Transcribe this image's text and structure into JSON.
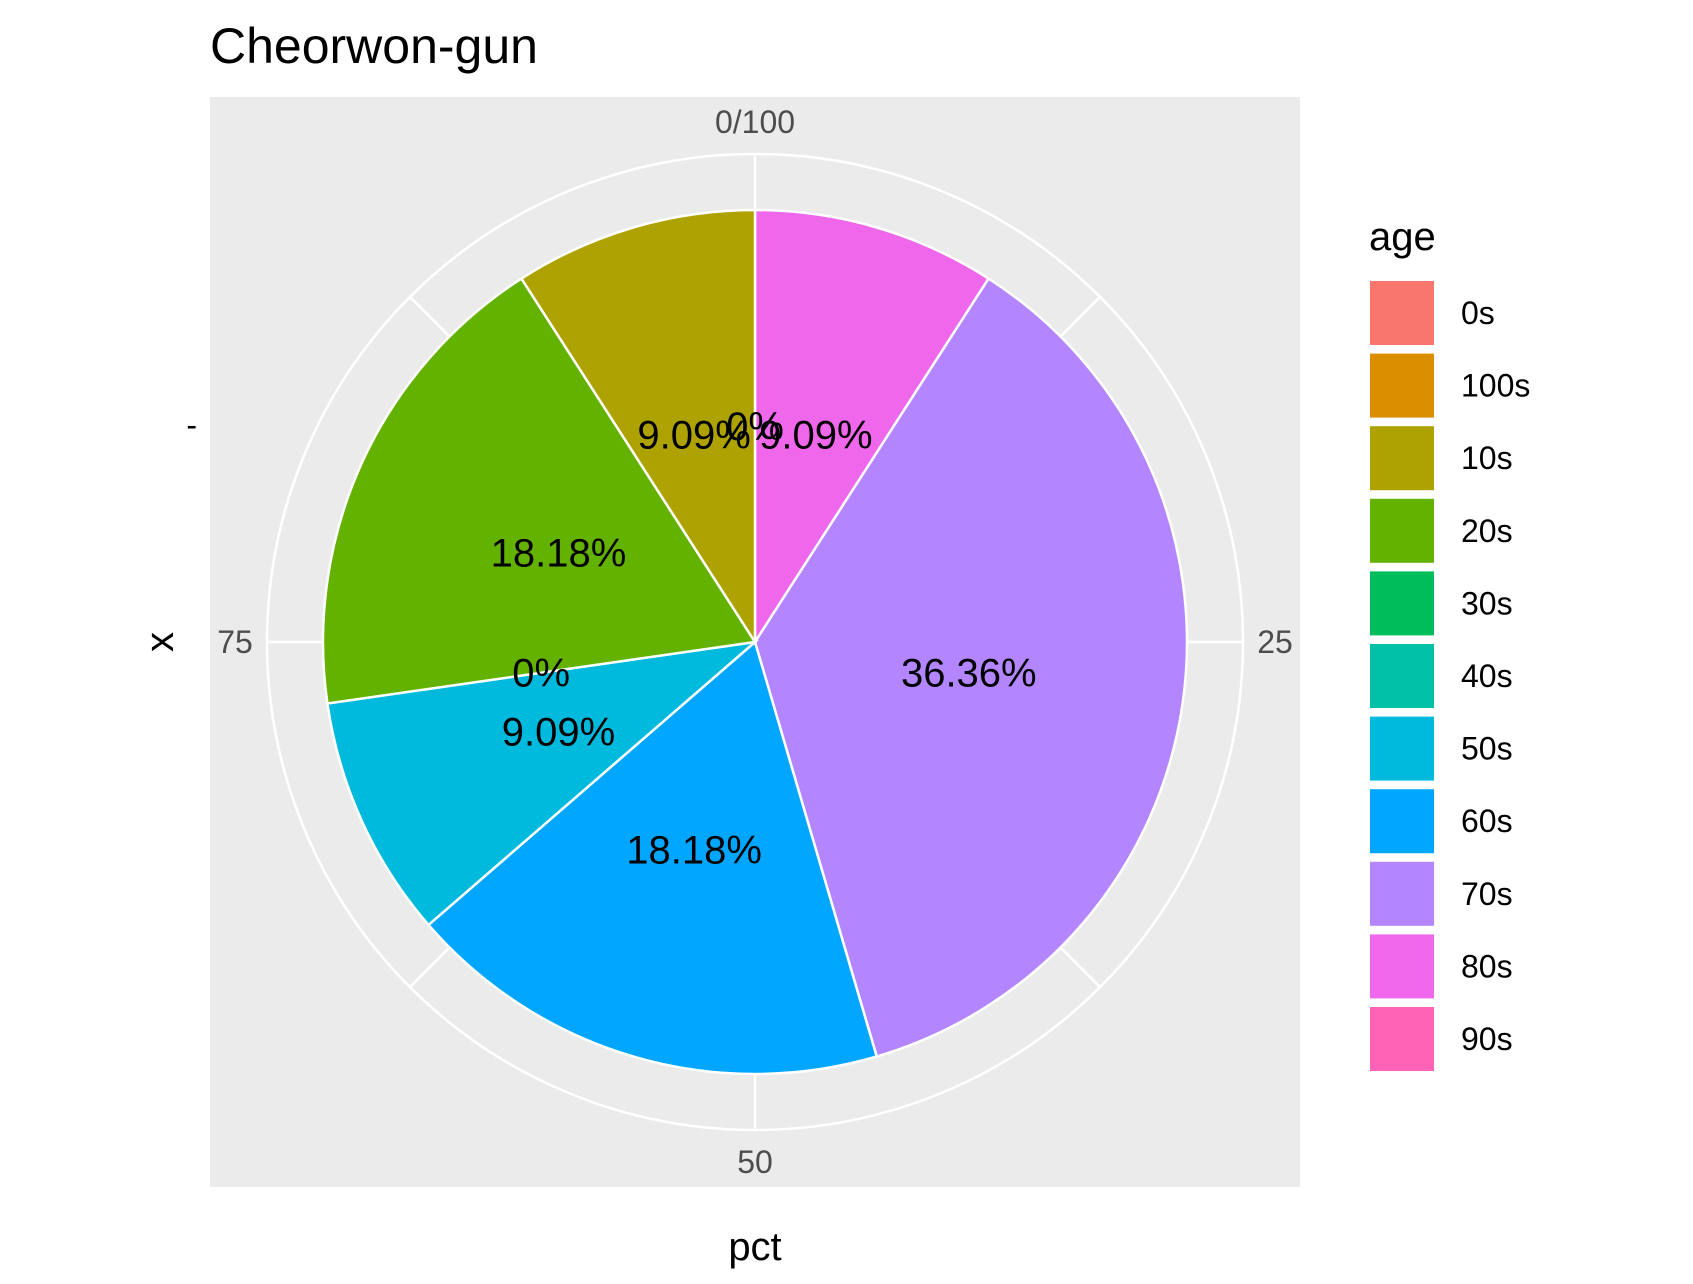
{
  "chart_data": {
    "type": "pie",
    "title": "Cheorwon-gun",
    "xlabel": "pct",
    "ylabel": "x",
    "y_tick_label": "-",
    "angular_ticks": [
      {
        "value": 0,
        "label": "0/100"
      },
      {
        "value": 25,
        "label": "25"
      },
      {
        "value": 50,
        "label": "50"
      },
      {
        "value": 75,
        "label": "75"
      }
    ],
    "legend": {
      "title": "age",
      "position": "right"
    },
    "slices": [
      {
        "category": "0s",
        "pct": 0,
        "label": "0%",
        "color": "#F8766D"
      },
      {
        "category": "100s",
        "pct": 0,
        "label": "",
        "color": "#DB8E00"
      },
      {
        "category": "10s",
        "pct": 9.09,
        "label": "9.09%",
        "color": "#AEA200"
      },
      {
        "category": "20s",
        "pct": 18.18,
        "label": "18.18%",
        "color": "#64B200"
      },
      {
        "category": "30s",
        "pct": 0,
        "label": "",
        "color": "#00BD5C"
      },
      {
        "category": "40s",
        "pct": 0,
        "label": "0%",
        "color": "#00C1A7"
      },
      {
        "category": "50s",
        "pct": 9.09,
        "label": "9.09%",
        "color": "#00BADE"
      },
      {
        "category": "60s",
        "pct": 18.18,
        "label": "18.18%",
        "color": "#00A6FF"
      },
      {
        "category": "70s",
        "pct": 36.36,
        "label": "36.36%",
        "color": "#B385FF"
      },
      {
        "category": "80s",
        "pct": 9.09,
        "label": "9.09%",
        "color": "#EF67EB"
      },
      {
        "category": "90s",
        "pct": 0,
        "label": "",
        "color": "#FF63B6"
      }
    ]
  }
}
